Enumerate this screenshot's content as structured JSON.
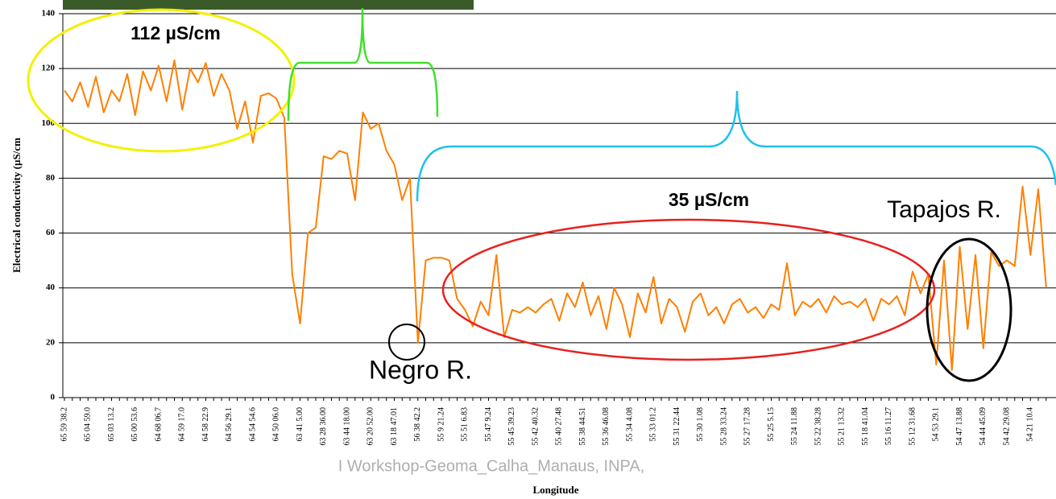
{
  "chart_data": {
    "type": "line",
    "ylabel": "Electrical conductivity (µS/cm",
    "xlabel": "Longitude",
    "annotations": [
      "112 µS/cm",
      "35 µS/cm",
      "Negro R.",
      "Tapajos R.",
      "I Workshop-Geoma_Calha_Manaus, INPA,"
    ],
    "categories": [
      "65 59 38.2",
      null,
      null,
      "65 04 59.0",
      null,
      null,
      "65 03 13.2",
      null,
      null,
      "65 00 53.6",
      null,
      null,
      "64 68 06.7",
      null,
      null,
      "64 59 17.0",
      null,
      null,
      "64 58 22.9",
      null,
      null,
      "64 56 29.1",
      null,
      null,
      "64 54 54.6",
      null,
      null,
      "64 50 06.0",
      null,
      null,
      "63 41 5.00",
      null,
      null,
      "63 28 36.00",
      null,
      null,
      "63 44 18.00",
      null,
      null,
      "63 20 52.00",
      null,
      null,
      "63 18 47.01",
      null,
      null,
      "56 38 42.2",
      null,
      null,
      "55 9 21.24",
      null,
      null,
      "55 51 6.83",
      null,
      null,
      "55 47 9.24",
      null,
      null,
      "55 45 39.23",
      null,
      null,
      "55 42 40.32",
      null,
      null,
      "55 40 27.48",
      null,
      null,
      "55 38 44.51",
      null,
      null,
      "55 36 46.08",
      null,
      null,
      "55 34 4.08",
      null,
      null,
      "55 33 01.2",
      null,
      null,
      "55 31 22.44",
      null,
      null,
      "55 30 1.08",
      null,
      null,
      "55 28 33.24",
      null,
      null,
      "55 27 17.28",
      null,
      null,
      "55 25 5.15",
      null,
      null,
      "55 24 11.88",
      null,
      null,
      "55 22 38.28",
      null,
      null,
      "55 21 13.32",
      null,
      null,
      "55 18 41.04",
      null,
      null,
      "55 16 11.27",
      null,
      null,
      "55 12 31.68",
      null,
      null,
      "54 53 29.1",
      null,
      null,
      "54 47 13.88",
      null,
      null,
      "54 44 45.09",
      null,
      null,
      "54 42 29.08",
      null,
      null,
      "54 21 10.4",
      null,
      null
    ],
    "values": [
      112,
      108,
      115,
      106,
      117,
      104,
      112,
      108,
      118,
      103,
      119,
      112,
      121,
      108,
      123,
      105,
      120,
      115,
      122,
      110,
      118,
      112,
      98,
      108,
      93,
      110,
      111,
      109,
      102,
      45,
      27,
      60,
      62,
      88,
      87,
      90,
      89,
      72,
      104,
      98,
      100,
      90,
      85,
      72,
      80,
      20,
      50,
      51,
      51,
      50,
      36,
      32,
      26,
      35,
      30,
      52,
      22,
      32,
      31,
      33,
      31,
      34,
      36,
      28,
      38,
      33,
      42,
      30,
      37,
      25,
      40,
      34,
      22,
      38,
      31,
      44,
      27,
      36,
      33,
      24,
      35,
      38,
      30,
      33,
      27,
      34,
      36,
      31,
      33,
      29,
      34,
      32,
      49,
      30,
      35,
      33,
      36,
      31,
      37,
      34,
      35,
      33,
      36,
      28,
      36,
      34,
      37,
      30,
      46,
      38,
      45,
      12,
      50,
      10,
      55,
      25,
      52,
      18,
      53,
      48,
      50,
      48,
      77,
      52,
      76,
      40
    ],
    "color": "#ff7f00",
    "ylim": [
      0,
      140
    ],
    "yticks": [
      0,
      20,
      40,
      60,
      80,
      100,
      120,
      140
    ],
    "grid": true
  }
}
